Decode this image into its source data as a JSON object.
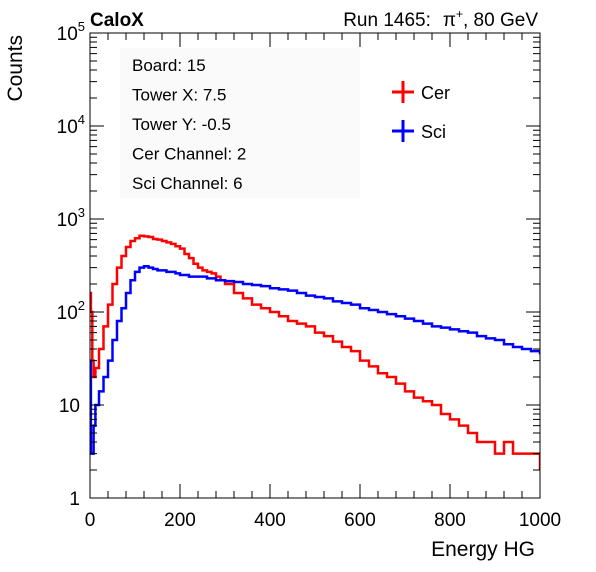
{
  "header": {
    "experiment": "CaloX",
    "run_prefix": "Run 1465:",
    "particle": "π",
    "particle_charge": "+",
    "energy": ", 80 GeV"
  },
  "info_box": [
    "Board: 15",
    "Tower X: 7.5",
    "Tower Y: -0.5",
    "Cer Channel: 2",
    "Sci Channel: 6"
  ],
  "chart_data": {
    "type": "line",
    "drawstyle": "step",
    "xlabel": "Energy HG",
    "ylabel": "Counts",
    "xlim": [
      0,
      1000
    ],
    "ylim": [
      1,
      100000
    ],
    "yscale": "log",
    "x_ticks": [
      0,
      200,
      400,
      600,
      800,
      1000
    ],
    "y_ticks": [
      {
        "value": 1,
        "base": "1",
        "exp": ""
      },
      {
        "value": 10,
        "base": "10",
        "exp": ""
      },
      {
        "value": 100,
        "base": "10",
        "exp": "2"
      },
      {
        "value": 1000,
        "base": "10",
        "exp": "3"
      },
      {
        "value": 10000,
        "base": "10",
        "exp": "4"
      },
      {
        "value": 100000,
        "base": "10",
        "exp": "5"
      }
    ],
    "legend_position": "top-right",
    "series": [
      {
        "name": "Cer",
        "color": "#ff0000",
        "x": [
          0,
          2,
          5,
          8,
          12,
          20,
          30,
          40,
          50,
          60,
          70,
          80,
          90,
          100,
          110,
          120,
          130,
          140,
          150,
          160,
          170,
          180,
          190,
          200,
          210,
          220,
          230,
          240,
          250,
          260,
          270,
          280,
          290,
          300,
          320,
          340,
          360,
          380,
          400,
          420,
          440,
          460,
          480,
          500,
          520,
          540,
          560,
          580,
          600,
          620,
          640,
          660,
          680,
          700,
          720,
          740,
          760,
          780,
          800,
          820,
          840,
          860,
          880,
          900,
          920,
          940,
          960,
          980,
          1000
        ],
        "values": [
          160,
          100,
          30,
          20,
          25,
          40,
          70,
          120,
          200,
          300,
          400,
          500,
          580,
          620,
          660,
          650,
          640,
          610,
          600,
          580,
          560,
          540,
          510,
          480,
          420,
          380,
          330,
          300,
          280,
          270,
          260,
          240,
          220,
          200,
          160,
          140,
          120,
          110,
          100,
          90,
          80,
          75,
          70,
          60,
          55,
          48,
          42,
          38,
          30,
          26,
          22,
          20,
          17,
          14,
          12,
          11,
          10,
          8,
          7,
          6,
          5,
          4,
          4,
          3,
          4,
          3,
          3,
          3,
          2
        ]
      },
      {
        "name": "Sci",
        "color": "#0000ff",
        "x": [
          0,
          2,
          5,
          8,
          12,
          20,
          30,
          40,
          50,
          60,
          70,
          80,
          90,
          100,
          110,
          120,
          130,
          140,
          150,
          160,
          170,
          180,
          190,
          200,
          220,
          240,
          260,
          280,
          300,
          320,
          340,
          360,
          380,
          400,
          420,
          440,
          460,
          480,
          500,
          520,
          540,
          560,
          580,
          600,
          620,
          640,
          660,
          680,
          700,
          720,
          740,
          760,
          780,
          800,
          820,
          840,
          860,
          880,
          900,
          920,
          940,
          960,
          980,
          1000
        ],
        "values": [
          30,
          3,
          3,
          6,
          10,
          14,
          20,
          30,
          50,
          80,
          110,
          160,
          220,
          270,
          300,
          310,
          300,
          290,
          280,
          280,
          270,
          270,
          260,
          250,
          240,
          240,
          230,
          220,
          215,
          210,
          200,
          195,
          190,
          180,
          175,
          170,
          160,
          150,
          145,
          140,
          130,
          125,
          120,
          110,
          105,
          100,
          95,
          90,
          85,
          80,
          75,
          70,
          68,
          65,
          62,
          60,
          55,
          52,
          50,
          45,
          42,
          40,
          38,
          35
        ]
      }
    ]
  }
}
